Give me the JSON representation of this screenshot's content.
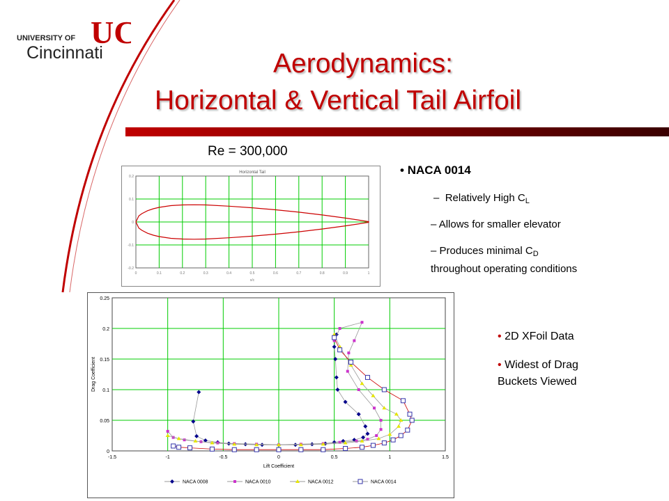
{
  "logo": {
    "line1": "UNIVERSITY OF",
    "line2": "Cincinnati",
    "mark": "UC"
  },
  "title": {
    "line1": "Aerodynamics:",
    "line2": "Horizontal & Vertical Tail Airfoil"
  },
  "reynolds_label": "Re = 300,000",
  "bullets1": {
    "main": "NACA 0014",
    "sub1_prefix": "Relatively High C",
    "sub1_sub": "L",
    "sub2": "Allows for smaller elevator",
    "sub3_prefix": "Produces minimal C",
    "sub3_sub": "D",
    "sub3_rest": "throughout operating conditions",
    "dash": "–"
  },
  "bullets2": {
    "item1": "2D XFoil Data",
    "item2_line1": "Widest of Drag",
    "item2_line2": "Buckets Viewed"
  },
  "colors": {
    "accent": "#c00000",
    "grid": "#00cc00",
    "airfoil": "#cc0000"
  },
  "chart_data": [
    {
      "type": "line",
      "title": "Horizontal Tail",
      "xlim": [
        0,
        1
      ],
      "ylim": [
        -0.2,
        0.2
      ],
      "xticks": [
        "0",
        "0.1",
        "0.2",
        "0.3",
        "0.4",
        "0.5",
        "0.6",
        "0.7",
        "0.8",
        "0.9",
        "1"
      ],
      "yticks": [
        "0.2",
        "0.1",
        "0",
        "-0.1",
        "-0.2"
      ],
      "xlabel": "x/c",
      "series": [
        {
          "x": [
            0,
            0.0125,
            0.025,
            0.05,
            0.075,
            0.1,
            0.15,
            0.2,
            0.25,
            0.3,
            0.4,
            0.5,
            0.6,
            0.7,
            0.8,
            0.9,
            0.95,
            1.0
          ],
          "y": [
            0,
            0.0265,
            0.0362,
            0.0491,
            0.0576,
            0.0637,
            0.0712,
            0.0742,
            0.075,
            0.0743,
            0.0689,
            0.0617,
            0.0531,
            0.0428,
            0.0307,
            0.0171,
            0.0095,
            0.0015
          ]
        }
      ]
    },
    {
      "type": "line",
      "xlabel": "Lift Coefficient",
      "ylabel": "Drag Coefficient",
      "xlim": [
        -1.5,
        1.5
      ],
      "ylim": [
        0,
        0.25
      ],
      "xticks": [
        "-1.5",
        "-1",
        "-0.5",
        "0",
        "0.5",
        "1",
        "1.5"
      ],
      "yticks": [
        "0.25",
        "0.2",
        "0.15",
        "0.1",
        "0.05",
        "0"
      ],
      "legend_position": "bottom",
      "series": [
        {
          "name": "NACA 0008",
          "color": "#00008b",
          "marker": "diamond",
          "points": [
            [
              -0.72,
              0.096
            ],
            [
              -0.77,
              0.048
            ],
            [
              -0.74,
              0.024
            ],
            [
              -0.66,
              0.017
            ],
            [
              -0.55,
              0.014
            ],
            [
              -0.45,
              0.012
            ],
            [
              -0.3,
              0.011
            ],
            [
              -0.15,
              0.01
            ],
            [
              0,
              0.01
            ],
            [
              0.15,
              0.01
            ],
            [
              0.3,
              0.011
            ],
            [
              0.42,
              0.012
            ],
            [
              0.5,
              0.014
            ],
            [
              0.58,
              0.016
            ],
            [
              0.68,
              0.018
            ],
            [
              0.76,
              0.022
            ],
            [
              0.8,
              0.028
            ],
            [
              0.78,
              0.04
            ],
            [
              0.72,
              0.06
            ],
            [
              0.6,
              0.08
            ],
            [
              0.53,
              0.1
            ],
            [
              0.52,
              0.12
            ],
            [
              0.51,
              0.15
            ],
            [
              0.5,
              0.17
            ],
            [
              0.52,
              0.19
            ]
          ]
        },
        {
          "name": "NACA 0010",
          "color": "#cc33cc",
          "marker": "square",
          "points": [
            [
              -1.0,
              0.032
            ],
            [
              -0.95,
              0.022
            ],
            [
              -0.85,
              0.018
            ],
            [
              -0.7,
              0.015
            ],
            [
              -0.55,
              0.013
            ],
            [
              -0.4,
              0.012
            ],
            [
              -0.2,
              0.011
            ],
            [
              0,
              0.01
            ],
            [
              0.2,
              0.011
            ],
            [
              0.4,
              0.012
            ],
            [
              0.55,
              0.014
            ],
            [
              0.7,
              0.016
            ],
            [
              0.8,
              0.019
            ],
            [
              0.88,
              0.025
            ],
            [
              0.92,
              0.035
            ],
            [
              0.92,
              0.05
            ],
            [
              0.86,
              0.07
            ],
            [
              0.72,
              0.1
            ],
            [
              0.62,
              0.13
            ],
            [
              0.63,
              0.16
            ],
            [
              0.68,
              0.18
            ],
            [
              0.75,
              0.21
            ],
            [
              0.55,
              0.2
            ],
            [
              0.5,
              0.18
            ]
          ]
        },
        {
          "name": "NACA 0012",
          "color": "#e6e600",
          "marker": "triangle",
          "points": [
            [
              -1.0,
              0.025
            ],
            [
              -0.9,
              0.02
            ],
            [
              -0.75,
              0.016
            ],
            [
              -0.6,
              0.013
            ],
            [
              -0.4,
              0.011
            ],
            [
              -0.2,
              0.01
            ],
            [
              0,
              0.01
            ],
            [
              0.2,
              0.01
            ],
            [
              0.4,
              0.011
            ],
            [
              0.6,
              0.013
            ],
            [
              0.75,
              0.016
            ],
            [
              0.9,
              0.02
            ],
            [
              1.0,
              0.027
            ],
            [
              1.08,
              0.04
            ],
            [
              1.1,
              0.05
            ],
            [
              1.06,
              0.06
            ],
            [
              0.95,
              0.07
            ],
            [
              0.85,
              0.09
            ],
            [
              0.75,
              0.11
            ],
            [
              0.65,
              0.14
            ],
            [
              0.55,
              0.17
            ],
            [
              0.5,
              0.19
            ]
          ]
        },
        {
          "name": "NACA 0014",
          "color": "#3333aa",
          "marker": "open-square",
          "points": [
            [
              -0.95,
              0.008
            ],
            [
              -0.9,
              0.006
            ],
            [
              -0.8,
              0.005
            ],
            [
              -0.6,
              0.003
            ],
            [
              -0.4,
              0.002
            ],
            [
              -0.2,
              0.002
            ],
            [
              0,
              0.002
            ],
            [
              0.2,
              0.002
            ],
            [
              0.4,
              0.002
            ],
            [
              0.6,
              0.004
            ],
            [
              0.75,
              0.006
            ],
            [
              0.85,
              0.009
            ],
            [
              0.95,
              0.013
            ],
            [
              1.03,
              0.018
            ],
            [
              1.1,
              0.025
            ],
            [
              1.16,
              0.034
            ],
            [
              1.2,
              0.05
            ],
            [
              1.18,
              0.06
            ],
            [
              1.12,
              0.082
            ],
            [
              0.95,
              0.1
            ],
            [
              0.8,
              0.12
            ],
            [
              0.65,
              0.145
            ],
            [
              0.55,
              0.165
            ],
            [
              0.5,
              0.185
            ]
          ]
        }
      ]
    }
  ]
}
